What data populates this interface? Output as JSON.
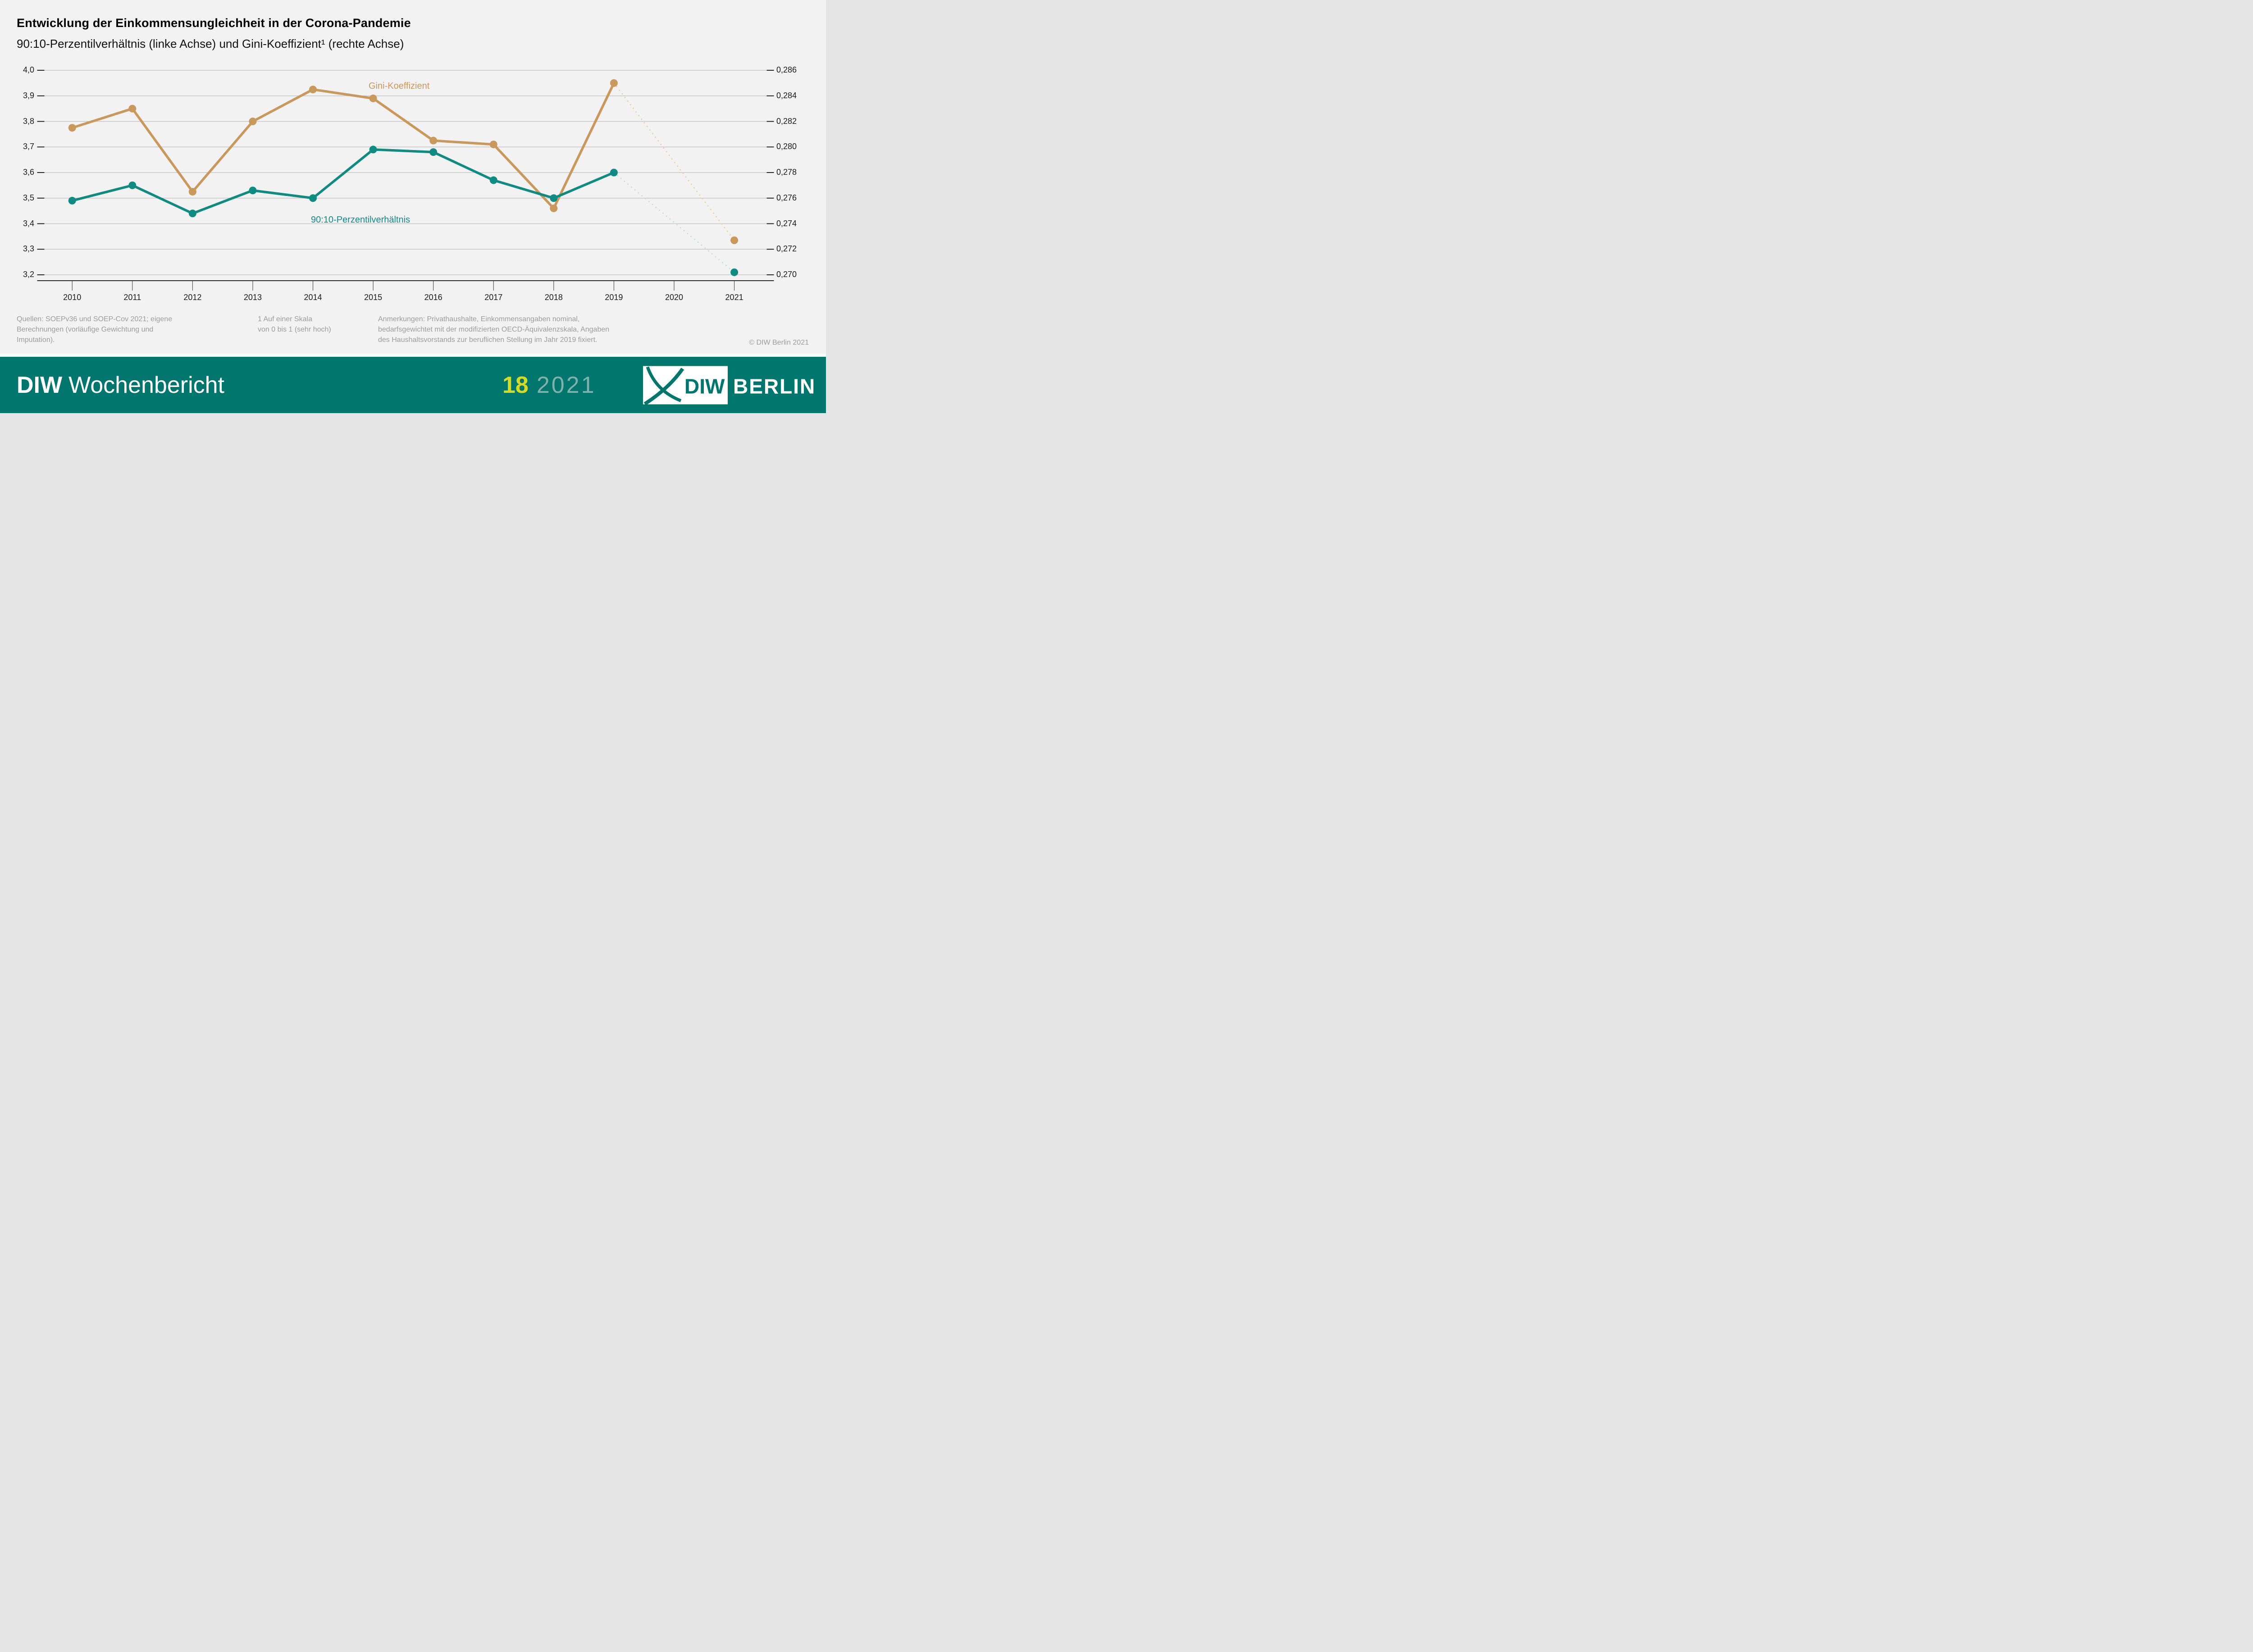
{
  "header": {
    "title": "Entwicklung der Einkommensungleichheit in der Corona-Pandemie",
    "subtitle": "90:10-Perzentilverhältnis (linke Achse) und Gini-Koeffizient¹ (rechte Achse)"
  },
  "chart_data": {
    "type": "line",
    "x": [
      2010,
      2011,
      2012,
      2013,
      2014,
      2015,
      2016,
      2017,
      2018,
      2019,
      2020,
      2021
    ],
    "series": [
      {
        "name": "Gini-Koeffizient",
        "axis": "right",
        "color": "#C9995C",
        "dotted_color": "#ECD2A8",
        "values": [
          0.2815,
          0.283,
          0.2765,
          0.282,
          0.2845,
          0.2838,
          0.2805,
          0.2802,
          0.2752,
          0.285,
          null,
          0.2727
        ]
      },
      {
        "name": "90:10-Perzentilverhältnis",
        "axis": "left",
        "color": "#0E8C82",
        "dotted_color": "#C5E3DC",
        "values": [
          3.49,
          3.55,
          3.44,
          3.53,
          3.5,
          3.69,
          3.68,
          3.57,
          3.5,
          3.6,
          null,
          3.21
        ]
      }
    ],
    "left_axis": {
      "min": 3.2,
      "max": 4.0,
      "tick_values": [
        4.0,
        3.9,
        3.8,
        3.7,
        3.6,
        3.5,
        3.4,
        3.3,
        3.2
      ],
      "tick_labels": [
        "4,0",
        "3,9",
        "3,8",
        "3,7",
        "3,6",
        "3,5",
        "3,4",
        "3,3",
        "3,2"
      ]
    },
    "right_axis": {
      "min": 0.27,
      "max": 0.286,
      "tick_labels": [
        "0,286",
        "0,284",
        "0,282",
        "0,280",
        "0,278",
        "0,276",
        "0,274",
        "0,272",
        "0,270"
      ]
    },
    "grid": "horizontal",
    "dashed_segment_years": [
      2019,
      2021
    ]
  },
  "footnotes": {
    "sources": "Quellen: SOEPv36 und SOEP-Cov 2021; eigene\nBerechnungen (vorläufige Gewichtung und\nImputation).",
    "footnote1": "1    Auf einer Skala\nvon 0 bis 1 (sehr hoch)",
    "remarks": "Anmerkungen: Privathaushalte, Einkommensangaben nominal,\nbedarfsgewichtet mit der modifizierten OECD-Äquivalenzskala, Angaben\ndes Haushaltsvorstands zur beruflichen Stellung im Jahr 2019 fixiert.",
    "copyright": "© DIW Berlin 2021"
  },
  "banner": {
    "brand_bold": "DIW",
    "brand_regular": "Wochenbericht",
    "issue_number": "18",
    "issue_year": "2021",
    "logo_diw": "DIW",
    "logo_berlin": "BERLIN"
  },
  "colors": {
    "background": "#f2f2f2",
    "banner": "#00766C",
    "gini_line": "#C9995C",
    "ratio_line": "#0E8C82",
    "issue_number": "#D6DB21",
    "issue_year": "#7FB2AB",
    "notes_gray": "#9C9C9C"
  }
}
